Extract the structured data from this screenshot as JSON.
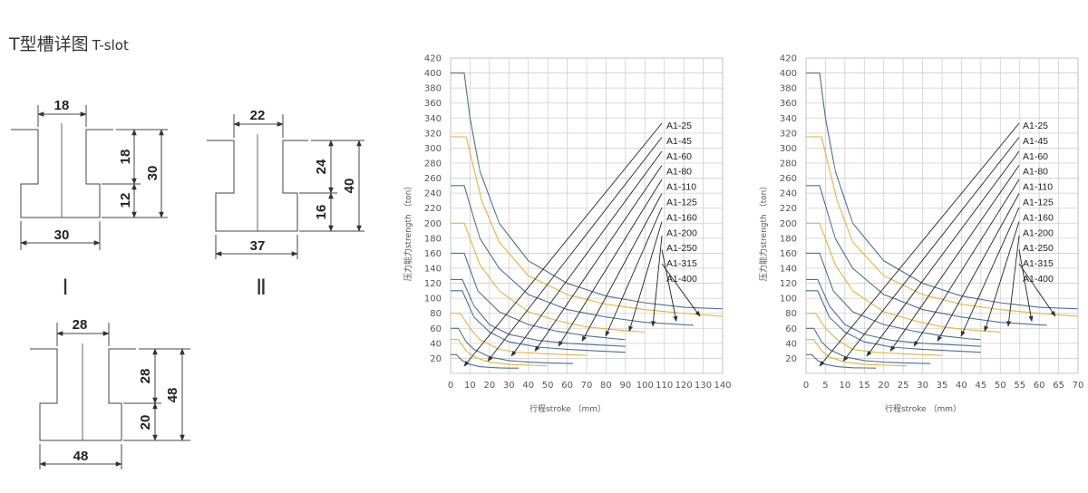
{
  "header": {
    "title_cn": "T型槽详图",
    "title_en": "T-slot"
  },
  "slots": [
    {
      "roman": "Ⅰ",
      "top_width": "18",
      "bottom_width": "30",
      "upper_height": "18",
      "lower_height": "12",
      "total_height": "30"
    },
    {
      "roman": "Ⅱ",
      "top_width": "22",
      "bottom_width": "37",
      "upper_height": "24",
      "lower_height": "16",
      "total_height": "40"
    },
    {
      "roman": "",
      "top_width": "28",
      "bottom_width": "48",
      "upper_height": "28",
      "lower_height": "20",
      "total_height": "48"
    }
  ],
  "chart_data": [
    {
      "type": "line",
      "xlabel": "行程stroke （mm）",
      "ylabel": "压力能力strength （ton）",
      "xlim": [
        0,
        140
      ],
      "ylim": [
        0,
        420
      ],
      "x_ticks": [
        0,
        10,
        20,
        30,
        40,
        50,
        60,
        70,
        80,
        90,
        100,
        110,
        120,
        130,
        140
      ],
      "y_ticks": [
        20,
        40,
        60,
        80,
        100,
        120,
        140,
        160,
        180,
        200,
        220,
        240,
        260,
        280,
        300,
        320,
        340,
        360,
        380,
        400,
        420
      ],
      "grid": true,
      "series": [
        {
          "name": "A1-25",
          "color": "#4d6f94",
          "x": [
            0,
            3,
            6,
            10,
            15,
            20,
            25,
            30,
            35
          ],
          "y": [
            25,
            25,
            17,
            12,
            9,
            8,
            7.3,
            7,
            7
          ]
        },
        {
          "name": "A1-45",
          "color": "#e8b23a",
          "x": [
            0,
            4,
            8,
            12,
            20,
            30,
            40,
            50
          ],
          "y": [
            45,
            45,
            30,
            22,
            15,
            12,
            11,
            10
          ]
        },
        {
          "name": "A1-60",
          "color": "#4d6f94",
          "x": [
            0,
            4,
            8,
            12,
            20,
            30,
            40,
            50,
            63
          ],
          "y": [
            60,
            60,
            42,
            32,
            22,
            17,
            15,
            14,
            13
          ]
        },
        {
          "name": "A1-80",
          "color": "#e8b23a",
          "x": [
            0,
            5,
            10,
            15,
            25,
            35,
            50,
            70
          ],
          "y": [
            80,
            80,
            60,
            45,
            32,
            28,
            26,
            24
          ]
        },
        {
          "name": "A1-110",
          "color": "#4d6f94",
          "x": [
            0,
            6,
            12,
            20,
            30,
            45,
            60,
            75,
            90
          ],
          "y": [
            110,
            110,
            75,
            55,
            42,
            35,
            32,
            30,
            28
          ]
        },
        {
          "name": "A1-125",
          "color": "#4d6f94",
          "x": [
            0,
            6,
            12,
            20,
            30,
            45,
            60,
            75,
            90
          ],
          "y": [
            125,
            125,
            90,
            65,
            52,
            44,
            40,
            38,
            36
          ]
        },
        {
          "name": "A1-160",
          "color": "#4d6f94",
          "x": [
            0,
            7,
            14,
            25,
            40,
            55,
            70,
            85,
            90
          ],
          "y": [
            160,
            160,
            110,
            82,
            65,
            56,
            50,
            46,
            45
          ]
        },
        {
          "name": "A1-200",
          "color": "#e8b23a",
          "x": [
            0,
            7,
            15,
            25,
            40,
            55,
            70,
            85,
            100
          ],
          "y": [
            200,
            200,
            145,
            110,
            82,
            70,
            62,
            58,
            55
          ]
        },
        {
          "name": "A1-250",
          "color": "#4d6f94",
          "x": [
            0,
            7,
            15,
            25,
            40,
            60,
            80,
            100,
            125
          ],
          "y": [
            250,
            250,
            180,
            140,
            105,
            85,
            75,
            68,
            64
          ]
        },
        {
          "name": "A1-315",
          "color": "#e8b23a",
          "x": [
            0,
            8,
            16,
            25,
            40,
            60,
            80,
            100,
            120,
            140
          ],
          "y": [
            315,
            315,
            230,
            175,
            130,
            105,
            92,
            85,
            80,
            76
          ]
        },
        {
          "name": "A1-400",
          "color": "#4d6f94",
          "x": [
            0,
            7,
            10,
            15,
            25,
            40,
            60,
            80,
            100,
            120,
            140
          ],
          "y": [
            400,
            400,
            340,
            270,
            200,
            150,
            120,
            103,
            94,
            88,
            86
          ]
        }
      ]
    },
    {
      "type": "line",
      "xlabel": "行程stroke （mm）",
      "ylabel": "压力能力strength （ton）",
      "xlim": [
        0,
        70
      ],
      "ylim": [
        0,
        420
      ],
      "x_ticks": [
        0,
        5,
        10,
        15,
        20,
        25,
        30,
        35,
        40,
        45,
        50,
        55,
        60,
        65,
        70
      ],
      "y_ticks": [
        20,
        40,
        60,
        80,
        100,
        120,
        140,
        160,
        180,
        200,
        220,
        240,
        260,
        280,
        300,
        320,
        340,
        360,
        380,
        400,
        420
      ],
      "grid": true,
      "series": [
        {
          "name": "A1-25",
          "color": "#4d6f94",
          "x": [
            0,
            1.5,
            3,
            5,
            8,
            12,
            18
          ],
          "y": [
            25,
            25,
            17,
            12,
            9,
            7.5,
            7
          ]
        },
        {
          "name": "A1-45",
          "color": "#e8b23a",
          "x": [
            0,
            2,
            4,
            6,
            10,
            15,
            20,
            26
          ],
          "y": [
            45,
            45,
            30,
            22,
            15,
            12,
            11,
            10
          ]
        },
        {
          "name": "A1-60",
          "color": "#4d6f94",
          "x": [
            0,
            2,
            4,
            6,
            10,
            15,
            20,
            25,
            32
          ],
          "y": [
            60,
            60,
            42,
            32,
            22,
            17,
            15,
            14,
            13
          ]
        },
        {
          "name": "A1-80",
          "color": "#e8b23a",
          "x": [
            0,
            2.5,
            5,
            8,
            12,
            18,
            25,
            35
          ],
          "y": [
            80,
            80,
            60,
            45,
            32,
            28,
            26,
            24
          ]
        },
        {
          "name": "A1-110",
          "color": "#4d6f94",
          "x": [
            0,
            3,
            6,
            10,
            15,
            22,
            30,
            38,
            45
          ],
          "y": [
            110,
            110,
            75,
            55,
            42,
            35,
            32,
            30,
            28
          ]
        },
        {
          "name": "A1-125",
          "color": "#4d6f94",
          "x": [
            0,
            3,
            6,
            10,
            15,
            22,
            30,
            38,
            45
          ],
          "y": [
            125,
            125,
            90,
            65,
            52,
            44,
            40,
            38,
            36
          ]
        },
        {
          "name": "A1-160",
          "color": "#4d6f94",
          "x": [
            0,
            3.5,
            7,
            12,
            20,
            28,
            35,
            42,
            45
          ],
          "y": [
            160,
            160,
            110,
            82,
            65,
            56,
            50,
            46,
            45
          ]
        },
        {
          "name": "A1-200",
          "color": "#e8b23a",
          "x": [
            0,
            3.5,
            7.5,
            12,
            20,
            28,
            35,
            42,
            50
          ],
          "y": [
            200,
            200,
            145,
            110,
            82,
            70,
            62,
            58,
            55
          ]
        },
        {
          "name": "A1-250",
          "color": "#4d6f94",
          "x": [
            0,
            3.5,
            7.5,
            12,
            20,
            30,
            40,
            50,
            62
          ],
          "y": [
            250,
            250,
            180,
            140,
            105,
            85,
            75,
            68,
            64
          ]
        },
        {
          "name": "A1-315",
          "color": "#e8b23a",
          "x": [
            0,
            4,
            8,
            12,
            20,
            30,
            40,
            50,
            60,
            70
          ],
          "y": [
            315,
            315,
            230,
            175,
            130,
            105,
            92,
            85,
            80,
            76
          ]
        },
        {
          "name": "A1-400",
          "color": "#4d6f94",
          "x": [
            0,
            3.5,
            5,
            7.5,
            12,
            20,
            30,
            40,
            50,
            60,
            70
          ],
          "y": [
            400,
            400,
            340,
            270,
            200,
            150,
            120,
            103,
            94,
            88,
            86
          ]
        }
      ]
    }
  ]
}
